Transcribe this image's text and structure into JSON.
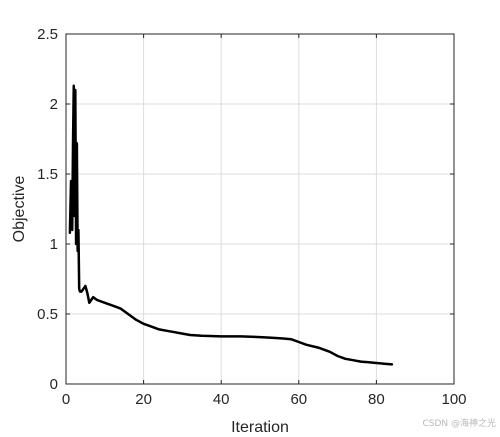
{
  "chart_data": {
    "type": "line",
    "title": "",
    "xlabel": "Iteration",
    "ylabel": "Objective",
    "xlim": [
      0,
      100
    ],
    "ylim": [
      0,
      2.5
    ],
    "xticks": [
      "0",
      "20",
      "40",
      "60",
      "80",
      "100"
    ],
    "yticks": [
      "0",
      "0.5",
      "1",
      "1.5",
      "2",
      "2.5"
    ],
    "grid": true,
    "legend": "none",
    "line_color": "#000000",
    "series": [
      {
        "x": [
          1,
          1.3,
          1.6,
          1.8,
          2.0,
          2.2,
          2.4,
          2.6,
          2.8,
          3.0,
          3.2,
          3.4,
          3.6,
          4,
          5,
          5.5,
          6,
          6.5,
          7,
          8,
          10,
          12,
          14,
          16,
          18,
          20,
          22,
          24,
          26,
          28,
          30,
          32,
          35,
          40,
          45,
          50,
          53,
          56,
          58,
          60,
          62,
          65,
          68,
          70,
          72,
          74,
          76,
          78,
          80,
          82,
          84
        ],
        "y": [
          1.08,
          1.45,
          1.1,
          1.7,
          2.13,
          1.2,
          2.1,
          1.0,
          1.72,
          0.95,
          1.1,
          0.68,
          0.66,
          0.66,
          0.7,
          0.65,
          0.58,
          0.6,
          0.62,
          0.6,
          0.58,
          0.56,
          0.54,
          0.5,
          0.46,
          0.43,
          0.41,
          0.39,
          0.38,
          0.37,
          0.36,
          0.35,
          0.345,
          0.34,
          0.34,
          0.335,
          0.33,
          0.325,
          0.32,
          0.3,
          0.28,
          0.26,
          0.23,
          0.2,
          0.18,
          0.17,
          0.16,
          0.155,
          0.15,
          0.145,
          0.14
        ]
      }
    ]
  },
  "watermark": "CSDN @海神之光"
}
